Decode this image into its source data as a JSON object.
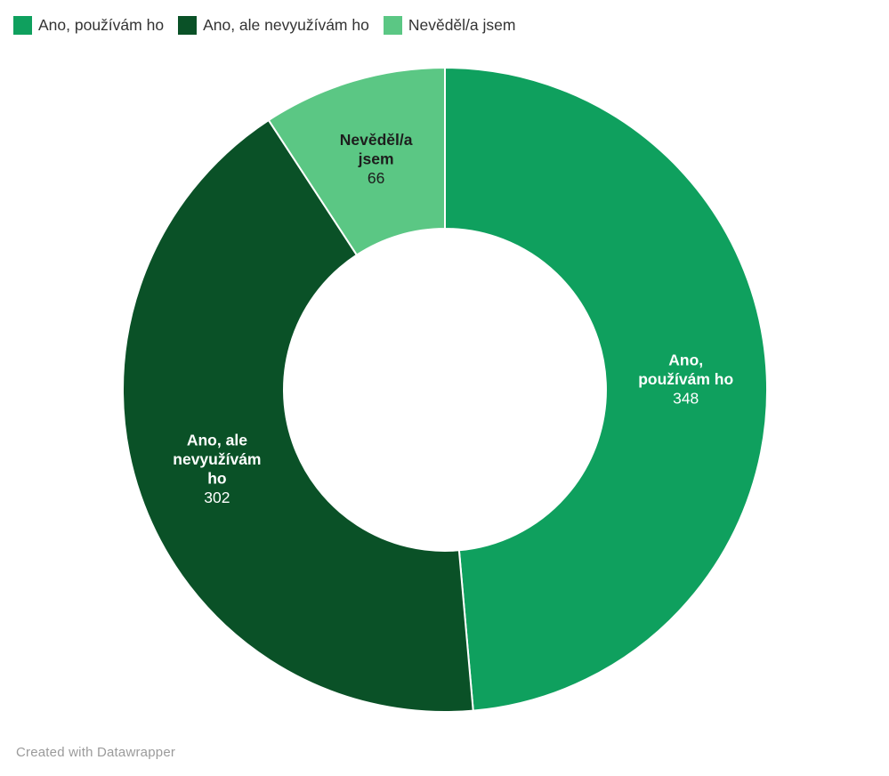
{
  "legend": {
    "items": [
      {
        "label": "Ano, používám ho",
        "color": "#0fa05e"
      },
      {
        "label": "Ano, ale nevyužívám ho",
        "color": "#0a5127"
      },
      {
        "label": "Nevěděl/a jsem",
        "color": "#5bc784"
      }
    ]
  },
  "chart_data": {
    "type": "pie",
    "subtype": "donut",
    "title": "",
    "categories": [
      "Ano, používám ho",
      "Ano, ale nevyužívám ho",
      "Nevěděl/a jsem"
    ],
    "values": [
      348,
      302,
      66
    ],
    "total": 716,
    "colors": [
      "#0fa05e",
      "#0a5127",
      "#5bc784"
    ],
    "slice_labels": [
      {
        "lines": [
          "Ano,",
          "používám ho"
        ],
        "value": "348",
        "text_color": "#ffffff"
      },
      {
        "lines": [
          "Ano, ale",
          "nevyužívám",
          "ho"
        ],
        "value": "302",
        "text_color": "#ffffff"
      },
      {
        "lines": [
          "Nevěděl/a",
          "jsem"
        ],
        "value": "66",
        "text_color": "#1d1d1d"
      }
    ],
    "start_angle_deg": 0,
    "direction": "clockwise",
    "legend_position": "top",
    "slice_stroke_color": "#ffffff"
  },
  "footer": {
    "credit": "Created with Datawrapper"
  }
}
